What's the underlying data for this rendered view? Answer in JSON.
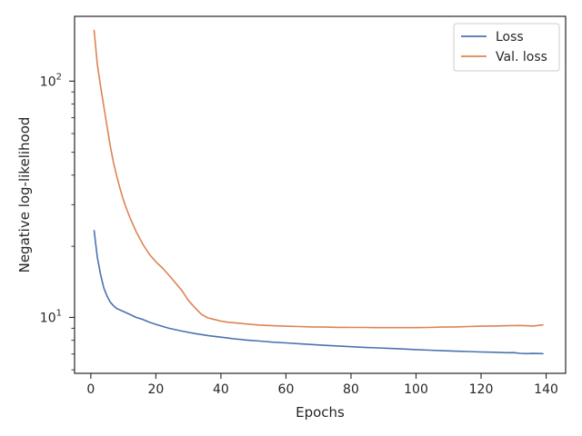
{
  "chart_data": {
    "type": "line",
    "xlabel": "Epochs",
    "ylabel": "Negative log-likelihood",
    "yscale": "log",
    "xlim": [
      -5,
      146
    ],
    "ylim": [
      5.8,
      188
    ],
    "xticks": [
      {
        "value": 0,
        "label": "0"
      },
      {
        "value": 20,
        "label": "20"
      },
      {
        "value": 40,
        "label": "40"
      },
      {
        "value": 60,
        "label": "60"
      },
      {
        "value": 80,
        "label": "80"
      },
      {
        "value": 100,
        "label": "100"
      },
      {
        "value": 120,
        "label": "120"
      },
      {
        "value": 140,
        "label": "140"
      }
    ],
    "yticks_major": [
      {
        "value": 10,
        "label": "10^1",
        "base": "10",
        "exp": "1"
      },
      {
        "value": 100,
        "label": "10^2",
        "base": "10",
        "exp": "2"
      }
    ],
    "yticks_minor": [
      6,
      7,
      8,
      9,
      20,
      30,
      40,
      50,
      60,
      70,
      80,
      90
    ],
    "grid": false,
    "legend": {
      "position": "top-right"
    },
    "series": [
      {
        "name": "Loss",
        "color": "#4c72b0",
        "x": [
          1,
          2,
          3,
          4,
          5,
          6,
          7,
          8,
          10,
          12,
          14,
          16,
          18,
          20,
          24,
          28,
          32,
          36,
          40,
          44,
          48,
          52,
          56,
          60,
          64,
          68,
          72,
          76,
          80,
          84,
          88,
          92,
          96,
          100,
          104,
          108,
          112,
          116,
          120,
          124,
          128,
          130,
          132,
          134,
          136,
          139
        ],
        "y": [
          23.3,
          18.0,
          15.2,
          13.3,
          12.3,
          11.6,
          11.2,
          10.9,
          10.6,
          10.3,
          10.0,
          9.8,
          9.55,
          9.35,
          9.0,
          8.75,
          8.55,
          8.38,
          8.25,
          8.12,
          8.02,
          7.94,
          7.86,
          7.8,
          7.74,
          7.68,
          7.62,
          7.57,
          7.52,
          7.47,
          7.43,
          7.39,
          7.35,
          7.31,
          7.27,
          7.23,
          7.2,
          7.17,
          7.14,
          7.12,
          7.09,
          7.1,
          7.05,
          7.03,
          7.04,
          7.03
        ]
      },
      {
        "name": "Val. loss",
        "color": "#dd8452",
        "x": [
          1,
          2,
          3,
          4,
          5,
          6,
          7,
          8,
          9,
          10,
          11,
          12,
          14,
          16,
          18,
          20,
          22,
          24,
          26,
          28,
          30,
          32,
          34,
          36,
          38,
          40,
          42,
          44,
          48,
          52,
          56,
          60,
          64,
          68,
          72,
          76,
          80,
          84,
          88,
          92,
          96,
          100,
          104,
          108,
          112,
          116,
          120,
          124,
          128,
          132,
          136,
          139
        ],
        "y": [
          164,
          118,
          95,
          78,
          64,
          53,
          45,
          39.5,
          35,
          31.5,
          28.8,
          26.5,
          23,
          20.4,
          18.5,
          17.2,
          16.2,
          15.1,
          14.0,
          13.0,
          11.8,
          11.0,
          10.3,
          9.95,
          9.8,
          9.65,
          9.55,
          9.5,
          9.38,
          9.28,
          9.22,
          9.18,
          9.15,
          9.12,
          9.1,
          9.08,
          9.07,
          9.07,
          9.05,
          9.05,
          9.05,
          9.05,
          9.07,
          9.1,
          9.12,
          9.15,
          9.18,
          9.2,
          9.22,
          9.25,
          9.2,
          9.3
        ]
      }
    ]
  }
}
